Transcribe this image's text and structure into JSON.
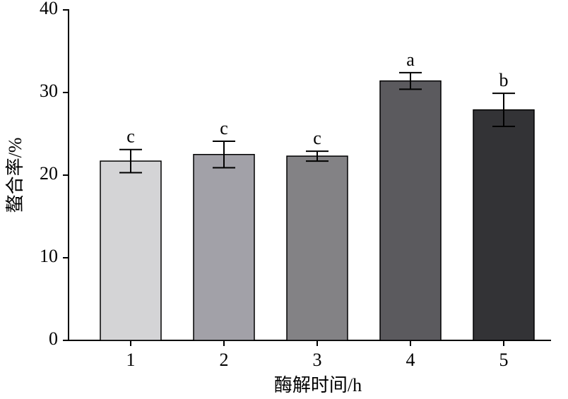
{
  "chart_data": {
    "type": "bar",
    "categories": [
      "1",
      "2",
      "3",
      "4",
      "5"
    ],
    "values": [
      21.7,
      22.5,
      22.3,
      31.4,
      27.9
    ],
    "errors": [
      1.4,
      1.6,
      0.6,
      1.0,
      2.0
    ],
    "annotations": [
      "c",
      "c",
      "c",
      "a",
      "b"
    ],
    "colors": [
      "#d4d4d6",
      "#a2a1a8",
      "#838285",
      "#5b5a5e",
      "#333336"
    ],
    "xlabel": "酶解时间/h",
    "ylabel": "螯合率/%",
    "ylim": [
      0,
      40
    ],
    "yticks": [
      0,
      10,
      20,
      30,
      40
    ]
  }
}
